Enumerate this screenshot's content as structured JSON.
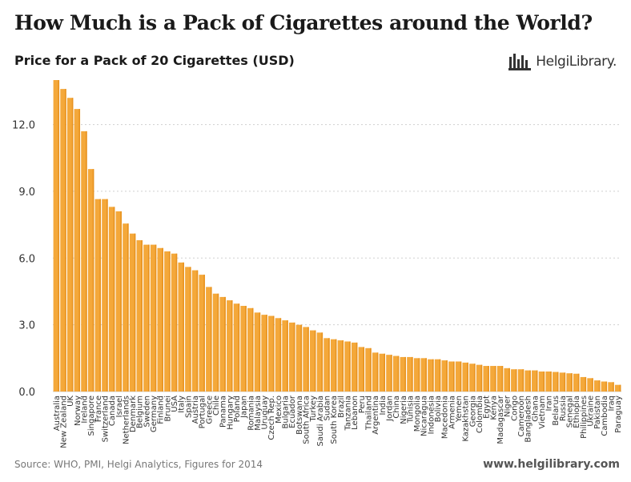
{
  "header": {
    "title": "How Much is a Pack of Cigarettes around the World?",
    "subtitle": "Price for a Pack of 20 Cigarettes (USD)"
  },
  "logo": {
    "text": "HelgiLibrary.",
    "icon": "city-skyline-logo-icon"
  },
  "footer": {
    "source": "Source: WHO, PMI, Helgi Analytics, Figures for 2014",
    "website": "www.helgilibrary.com"
  },
  "colors": {
    "bar": "#F4A83A",
    "bar_edge": "#E89320",
    "grid": "#CFCFCF",
    "axis_text": "#333333"
  },
  "chart_data": {
    "type": "bar",
    "title": "Price for a Pack of 20 Cigarettes (USD)",
    "xlabel": "",
    "ylabel": "",
    "ylim": [
      0,
      14
    ],
    "yticks": [
      0,
      3,
      6,
      9,
      12
    ],
    "ytick_labels": [
      "0.0",
      "3.0",
      "6.0",
      "9.0",
      "12.0"
    ],
    "grid": true,
    "categories": [
      "Australia",
      "New Zealand",
      "UK",
      "Norway",
      "Ireland",
      "Singapore",
      "France",
      "Switzerland",
      "Canada",
      "Israel",
      "Netherlands",
      "Denmark",
      "Belgium",
      "Sweden",
      "Germany",
      "Finland",
      "Brunei",
      "USA",
      "Italy",
      "Spain",
      "Austria",
      "Portugal",
      "Greece",
      "Chile",
      "Panama",
      "Hungary",
      "Poland",
      "Japan",
      "Romania",
      "Malaysia",
      "Uruguay",
      "Czech Rep.",
      "Mexico",
      "Bulgaria",
      "Ecuador",
      "Botswana",
      "South Africa",
      "Turkey",
      "Saudi Arabia",
      "Sudan",
      "South Korea",
      "Brazil",
      "Tanzania",
      "Lebanon",
      "Peru",
      "Thailand",
      "Argentina",
      "India",
      "Jordan",
      "China",
      "Nigeria",
      "Tunisia",
      "Mongolia",
      "Nicaragua",
      "Indonesia",
      "Bolivia",
      "Macedonia",
      "Armenia",
      "Yemen",
      "Kazakhstan",
      "Georgia",
      "Colombia",
      "Egypt",
      "Kenya",
      "Madagascar",
      "Niger",
      "Congo",
      "Cameroon",
      "Bangladesh",
      "Ghana",
      "Vietnam",
      "Iran",
      "Belarus",
      "Russia",
      "Senegal",
      "Ethiopia",
      "Philippines",
      "Ukraine",
      "Pakistan",
      "Cambodia",
      "Iraq",
      "Paraguay"
    ],
    "values": [
      14.0,
      13.6,
      13.2,
      12.7,
      11.7,
      10.0,
      8.65,
      8.65,
      8.3,
      8.1,
      7.55,
      7.1,
      6.8,
      6.6,
      6.6,
      6.45,
      6.3,
      6.2,
      5.8,
      5.6,
      5.45,
      5.25,
      4.7,
      4.4,
      4.25,
      4.1,
      3.95,
      3.85,
      3.75,
      3.55,
      3.45,
      3.4,
      3.3,
      3.2,
      3.1,
      3.0,
      2.9,
      2.75,
      2.65,
      2.4,
      2.35,
      2.3,
      2.25,
      2.2,
      2.0,
      1.95,
      1.75,
      1.7,
      1.65,
      1.6,
      1.55,
      1.55,
      1.5,
      1.5,
      1.45,
      1.45,
      1.4,
      1.35,
      1.35,
      1.3,
      1.25,
      1.2,
      1.15,
      1.15,
      1.15,
      1.05,
      1.0,
      1.0,
      0.95,
      0.95,
      0.9,
      0.9,
      0.88,
      0.85,
      0.82,
      0.8,
      0.65,
      0.6,
      0.5,
      0.45,
      0.42,
      0.3
    ]
  }
}
